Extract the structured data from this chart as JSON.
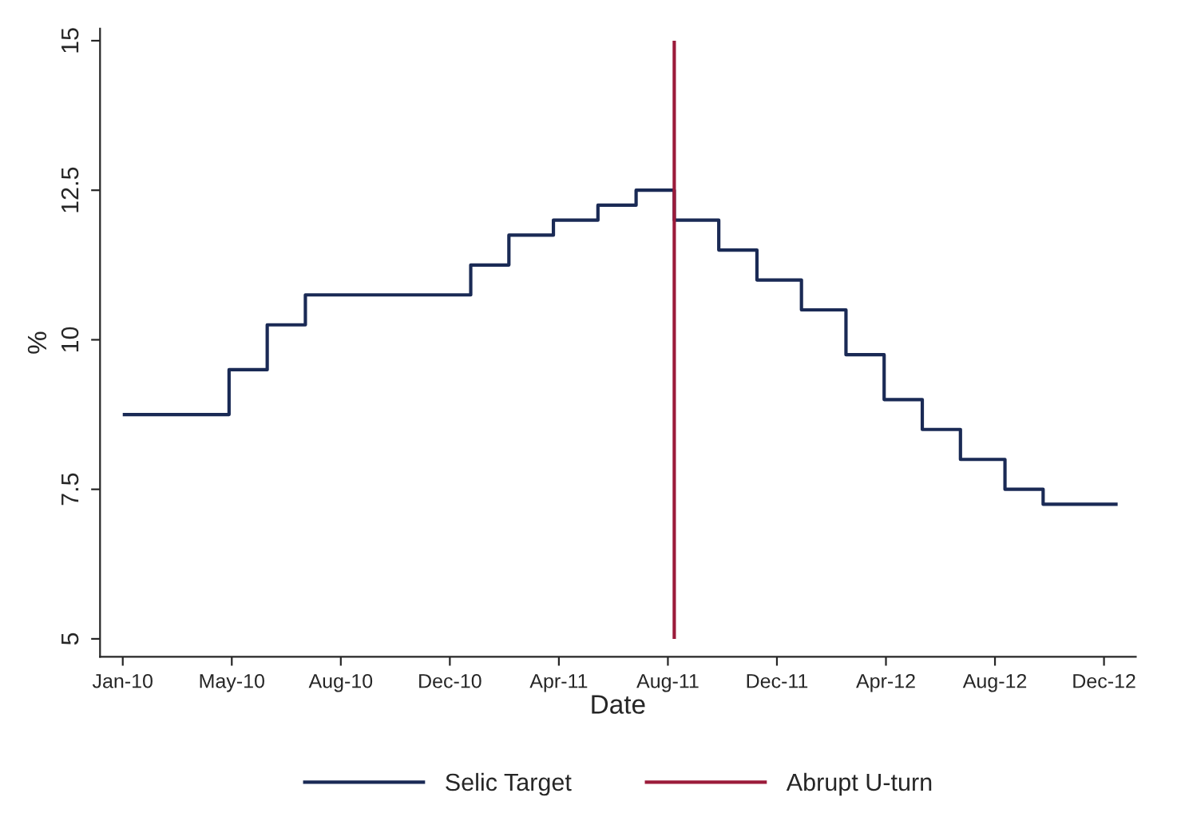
{
  "chart_data": {
    "type": "step",
    "xlabel": "Date",
    "ylabel": "%",
    "x": [
      "2010-01-01",
      "2010-04-28",
      "2010-06-09",
      "2010-07-21",
      "2011-01-19",
      "2011-03-02",
      "2011-04-20",
      "2011-06-08",
      "2011-07-20",
      "2011-08-31",
      "2011-10-19",
      "2011-11-30",
      "2012-01-18",
      "2012-03-07",
      "2012-04-18",
      "2012-05-30",
      "2012-07-11",
      "2012-08-29",
      "2012-10-10",
      "2012-12-31"
    ],
    "series": [
      {
        "name": "Selic Target",
        "color": "#1a2a55",
        "values": [
          8.75,
          9.5,
          10.25,
          10.75,
          11.25,
          11.75,
          12.0,
          12.25,
          12.5,
          12.0,
          11.5,
          11.0,
          10.5,
          9.75,
          9.0,
          8.5,
          8.0,
          7.5,
          7.25,
          7.25
        ]
      }
    ],
    "ref_lines": [
      {
        "axis": "x",
        "value": "2011-08-31",
        "label": "Abrupt U-turn",
        "color": "#9b1b3a"
      }
    ],
    "xlim": [
      "2009-12-07",
      "2013-01-20"
    ],
    "xticks": [
      {
        "value": "2010-01-01",
        "label": "Jan-10"
      },
      {
        "value": "2010-05-01",
        "label": "May-10"
      },
      {
        "value": "2010-08-29",
        "label": "Aug-10"
      },
      {
        "value": "2010-12-27",
        "label": "Dec-10"
      },
      {
        "value": "2011-04-26",
        "label": "Apr-11"
      },
      {
        "value": "2011-08-24",
        "label": "Aug-11"
      },
      {
        "value": "2011-12-22",
        "label": "Dec-11"
      },
      {
        "value": "2012-04-20",
        "label": "Apr-12"
      },
      {
        "value": "2012-08-18",
        "label": "Aug-12"
      },
      {
        "value": "2012-12-16",
        "label": "Dec-12"
      }
    ],
    "ylim": [
      4.7,
      15.2
    ],
    "yticks": [
      5,
      {
        "value": 7.5,
        "label": "7.5"
      },
      10,
      {
        "value": 12.5,
        "label": "12.5"
      },
      15
    ],
    "grid": false,
    "legend": "bottom"
  }
}
